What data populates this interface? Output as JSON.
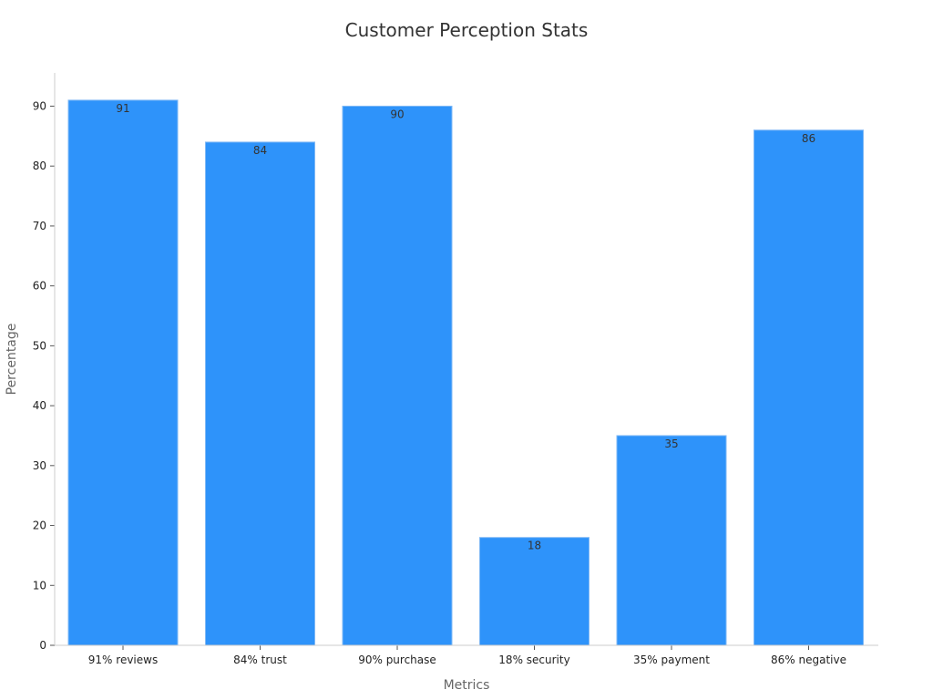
{
  "chart_data": {
    "type": "bar",
    "title": "Customer Perception Stats",
    "xlabel": "Metrics",
    "ylabel": "Percentage",
    "categories": [
      "91% reviews",
      "84% trust",
      "90% purchase",
      "18% security",
      "35% payment",
      "86% negative"
    ],
    "values": [
      91,
      84,
      90,
      18,
      35,
      86
    ],
    "data_labels": [
      "91",
      "84",
      "90",
      "18",
      "35",
      "86"
    ],
    "y_ticks": [
      0,
      10,
      20,
      30,
      40,
      50,
      60,
      70,
      80,
      90
    ],
    "y_tick_labels": [
      "0",
      "10",
      "20",
      "30",
      "40",
      "50",
      "60",
      "70",
      "80",
      "90"
    ],
    "ylim": [
      0,
      95.55
    ],
    "grid": false,
    "legend": "none",
    "bar_color": "#2e93fa"
  }
}
